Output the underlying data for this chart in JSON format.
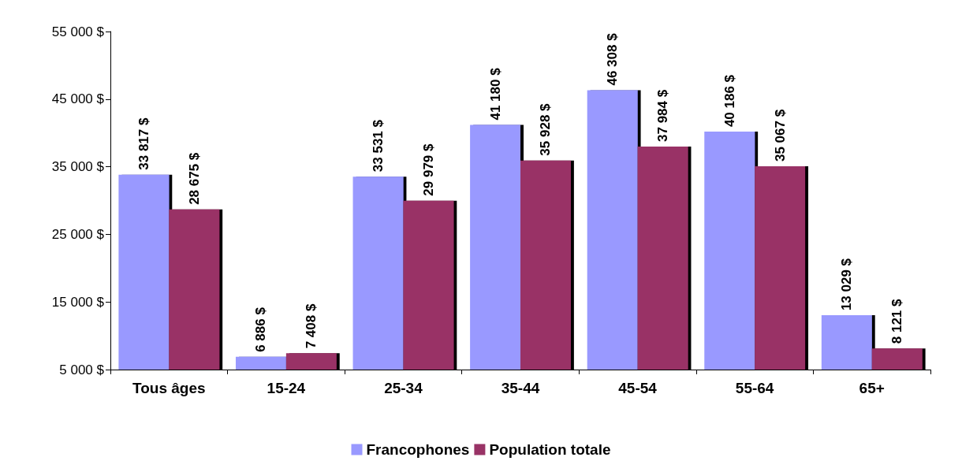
{
  "chart_data": {
    "type": "bar",
    "categories": [
      "Tous âges",
      "15-24",
      "25-34",
      "35-44",
      "45-54",
      "55-64",
      "65+"
    ],
    "series": [
      {
        "name": "Francophones",
        "color": "#9999ff",
        "values": [
          33817,
          6886,
          33531,
          41180,
          46308,
          40186,
          13029
        ],
        "value_labels": [
          "33 817 $",
          "6 886 $",
          "33 531 $",
          "41 180 $",
          "46 308 $",
          "40 186 $",
          "13 029 $"
        ]
      },
      {
        "name": "Population totale",
        "color": "#993366",
        "values": [
          28675,
          7408,
          29979,
          35928,
          37984,
          35067,
          8121
        ],
        "value_labels": [
          "28 675 $",
          "7 408 $",
          "29 979 $",
          "35 928 $",
          "37 984 $",
          "35 067 $",
          "8 121 $"
        ]
      }
    ],
    "ylim": [
      5000,
      55000
    ],
    "yticks": [
      {
        "value": 5000,
        "label": "5 000 $"
      },
      {
        "value": 15000,
        "label": "15 000 $"
      },
      {
        "value": 25000,
        "label": "25 000 $"
      },
      {
        "value": 35000,
        "label": "35 000 $"
      },
      {
        "value": 45000,
        "label": "45 000 $"
      },
      {
        "value": 55000,
        "label": "55 000 $"
      }
    ],
    "grid": false,
    "legend": "bottom"
  }
}
